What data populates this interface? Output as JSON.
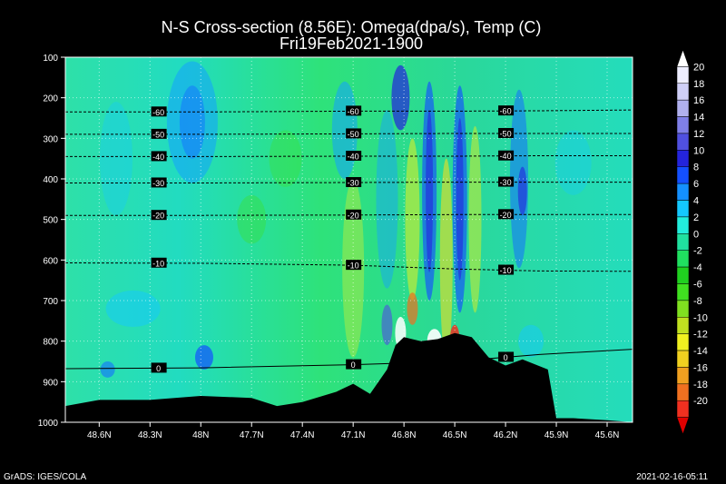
{
  "chart_data": {
    "type": "heatmap",
    "title": "N-S Cross-section (8.56E): Omega(dpa/s), Temp (C)",
    "subtitle": "Fri19Feb2021-1900",
    "y_axis": {
      "ticks": [
        100,
        200,
        300,
        400,
        500,
        600,
        700,
        800,
        900,
        1000
      ],
      "ylim": [
        100,
        1000
      ],
      "reversed": true
    },
    "x_axis": {
      "ticks": [
        "48.6N",
        "48.3N",
        "48N",
        "47.7N",
        "47.4N",
        "47.1N",
        "46.8N",
        "46.5N",
        "46.2N",
        "45.9N",
        "45.6N"
      ],
      "xlim": [
        48.8,
        45.45
      ],
      "reversed": true
    },
    "grid": true,
    "colorbar": {
      "labels": [
        "20",
        "18",
        "16",
        "14",
        "12",
        "10",
        "8",
        "6",
        "4",
        "2",
        "0",
        "-2",
        "-4",
        "-6",
        "-8",
        "-10",
        "-12",
        "-14",
        "-16",
        "-18",
        "-20"
      ],
      "colors": [
        "#ffffff",
        "#eeeeff",
        "#cfcff7",
        "#b0b0ee",
        "#7f7fe8",
        "#5050e0",
        "#2424dc",
        "#1450ff",
        "#1490ff",
        "#14c8ff",
        "#22eedd",
        "#20e0a0",
        "#20e060",
        "#20d020",
        "#40e020",
        "#80e020",
        "#c0e020",
        "#f0f020",
        "#f0d020",
        "#f0a020",
        "#f07020",
        "#f03020",
        "#e00000"
      ]
    },
    "temperature_contours": [
      {
        "label": "-60",
        "pressure": [
          235,
          235,
          233,
          233,
          232,
          230
        ]
      },
      {
        "label": "-50",
        "pressure": [
          290,
          290,
          289,
          288,
          288,
          288
        ]
      },
      {
        "label": "-40",
        "pressure": [
          345,
          345,
          344,
          344,
          343,
          343
        ]
      },
      {
        "label": "-30",
        "pressure": [
          410,
          410,
          409,
          408,
          408,
          408
        ]
      },
      {
        "label": "-20",
        "pressure": [
          490,
          490,
          489,
          488,
          488,
          488
        ]
      },
      {
        "label": "-10",
        "pressure": [
          607,
          608,
          613,
          622,
          627,
          628
        ]
      },
      {
        "label": "0",
        "pressure": [
          868,
          866,
          858,
          850,
          833,
          820
        ]
      }
    ],
    "contour_x": [
      48.8,
      48.0,
      47.1,
      46.5,
      46.0,
      45.45
    ],
    "terrain": {
      "lat": [
        48.8,
        48.6,
        48.3,
        48.0,
        47.7,
        47.55,
        47.4,
        47.2,
        47.1,
        47.0,
        46.9,
        46.85,
        46.8,
        46.7,
        46.6,
        46.5,
        46.4,
        46.3,
        46.2,
        46.1,
        45.95,
        45.9,
        45.8,
        45.6,
        45.45
      ],
      "pressure": [
        960,
        945,
        945,
        935,
        940,
        960,
        950,
        925,
        905,
        930,
        870,
        810,
        790,
        800,
        795,
        780,
        790,
        840,
        860,
        845,
        870,
        990,
        990,
        995,
        1000
      ]
    }
  },
  "footer": {
    "left": "GrADS: IGES/COLA",
    "right": "2021-02-16-05:11"
  }
}
